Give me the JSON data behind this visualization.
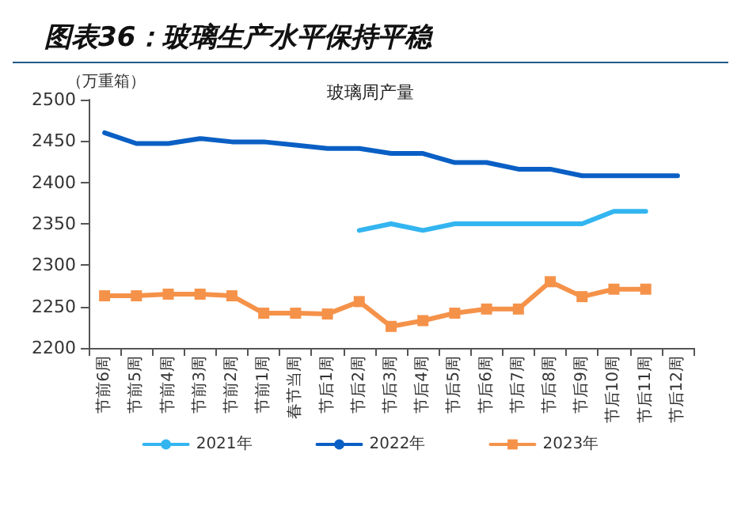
{
  "chart_data": {
    "type": "line",
    "title": "图表36：玻璃生产水平保持平稳",
    "subtitle": "玻璃周产量",
    "ylabel": "（万重箱）",
    "categories": [
      "节前6周",
      "节前5周",
      "节前4周",
      "节前3周",
      "节前2周",
      "节前1周",
      "春节当周",
      "节后1周",
      "节后2周",
      "节后3周",
      "节后4周",
      "节后5周",
      "节后6周",
      "节后7周",
      "节后8周",
      "节后9周",
      "节后10周",
      "节后11周",
      "节后12周"
    ],
    "series": [
      {
        "name": "2021年",
        "color": "#33b5f0",
        "marker": "none",
        "values": [
          null,
          null,
          null,
          null,
          null,
          null,
          null,
          null,
          2342,
          2350,
          2342,
          2350,
          2350,
          2350,
          2350,
          2350,
          2365,
          2365,
          null
        ]
      },
      {
        "name": "2022年",
        "color": "#0a5fc4",
        "marker": "none",
        "values": [
          2460,
          2447,
          2447,
          2453,
          2449,
          2449,
          2445,
          2441,
          2441,
          2435,
          2435,
          2424,
          2424,
          2416,
          2416,
          2408,
          2408,
          2408,
          2408
        ]
      },
      {
        "name": "2023年",
        "color": "#f5924a",
        "marker": "square",
        "values": [
          2263,
          2263,
          2265,
          2265,
          2263,
          2242,
          2242,
          2241,
          2256,
          2226,
          2233,
          2242,
          2247,
          2247,
          2280,
          2262,
          2271,
          2271,
          null
        ]
      }
    ],
    "ylim": [
      2200,
      2500
    ],
    "yticks": [
      2200,
      2250,
      2300,
      2350,
      2400,
      2450,
      2500
    ],
    "grid": false,
    "legend": "bottom",
    "line_style": "solid"
  }
}
